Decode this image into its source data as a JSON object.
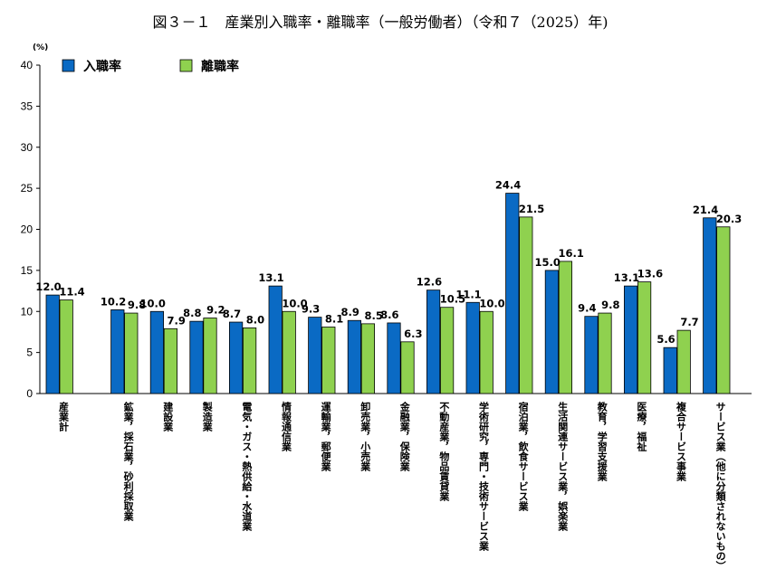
{
  "chart_data": {
    "type": "bar",
    "title": "図３－１　産業別入職率・離職率（一般労働者）（令和７（2025）年)",
    "y_unit": "(%)",
    "ylim": [
      0,
      40
    ],
    "yticks": [
      "0",
      "5",
      "10",
      "15",
      "20",
      "25",
      "30",
      "35",
      "40"
    ],
    "grid": false,
    "legend_position": "top-left",
    "categories": [
      "産業計",
      "鉱業，採石業，砂利採取業",
      "建設業",
      "製造業",
      "電気・ガス・熱供給・水道業",
      "情報通信業",
      "運輸業，郵便業",
      "卸売業，小売業",
      "金融業，保険業",
      "不動産業，物品賃貸業",
      "学術研究，専門・技術サービス業",
      "宿泊業，飲食サービス業",
      "生活関連サービス業，娯楽業",
      "教育，学習支援業",
      "医療，福祉",
      "複合サービス事業",
      "サービス業（他に分類されないもの）"
    ],
    "series": [
      {
        "name": "入職率",
        "color": "#0a6ac4",
        "values": [
          12.0,
          10.2,
          10.0,
          8.8,
          8.7,
          13.1,
          9.3,
          8.9,
          8.6,
          12.6,
          11.1,
          24.4,
          15.0,
          9.4,
          13.1,
          5.6,
          21.4
        ],
        "labels": [
          "12.0",
          "10.2",
          "10.0",
          "8.8",
          "8.7",
          "13.1",
          "9.3",
          "8.9",
          "8.6",
          "12.6",
          "11.1",
          "24.4",
          "15.0",
          "9.4",
          "13.1",
          "5.6",
          "21.4"
        ]
      },
      {
        "name": "離職率",
        "color": "#8fd14f",
        "values": [
          11.4,
          9.8,
          7.9,
          9.2,
          8.0,
          10.0,
          8.1,
          8.5,
          6.3,
          10.5,
          10.0,
          21.5,
          16.1,
          9.8,
          13.6,
          7.7,
          20.3
        ],
        "labels": [
          "11.4",
          "9.8",
          "7.9",
          "9.2",
          "8.0",
          "10.0",
          "8.1",
          "8.5",
          "6.3",
          "10.5",
          "10.0",
          "21.5",
          "16.1",
          "9.8",
          "13.6",
          "7.7",
          "20.3"
        ]
      }
    ]
  }
}
